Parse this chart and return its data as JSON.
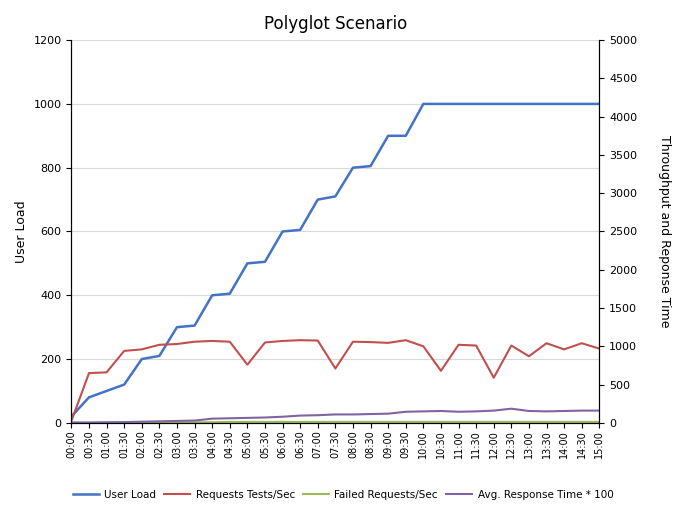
{
  "title": "Polyglot Scenario",
  "ylabel_left": "User Load",
  "ylabel_right": "Throughput and Reponse Time",
  "x_labels": [
    "00:00",
    "00:30",
    "01:00",
    "01:30",
    "02:00",
    "02:30",
    "03:00",
    "03:30",
    "04:00",
    "04:30",
    "05:00",
    "05:30",
    "06:00",
    "06:30",
    "07:00",
    "07:30",
    "08:00",
    "08:30",
    "09:00",
    "09:30",
    "10:00",
    "10:30",
    "11:00",
    "11:30",
    "12:00",
    "12:30",
    "13:00",
    "13:30",
    "14:00",
    "14:30",
    "15:00"
  ],
  "ylim_left": [
    0,
    1200
  ],
  "ylim_right": [
    0,
    5000
  ],
  "yticks_left": [
    0,
    200,
    400,
    600,
    800,
    1000,
    1200
  ],
  "yticks_right": [
    0,
    500,
    1000,
    1500,
    2000,
    2500,
    3000,
    3500,
    4000,
    4500,
    5000
  ],
  "user_load": [
    20,
    80,
    100,
    120,
    200,
    210,
    300,
    305,
    400,
    405,
    500,
    505,
    600,
    605,
    700,
    710,
    800,
    805,
    900,
    900,
    1000,
    1000,
    1000,
    1000,
    1000,
    1000,
    1000,
    1000,
    1000,
    1000,
    1000
  ],
  "requests_per_sec": [
    25,
    650,
    660,
    940,
    960,
    1020,
    1030,
    1060,
    1070,
    1060,
    760,
    1050,
    1070,
    1080,
    1075,
    710,
    1060,
    1055,
    1045,
    1080,
    1000,
    680,
    1020,
    1010,
    590,
    1010,
    870,
    1040,
    960,
    1040,
    970
  ],
  "failed_per_sec": [
    0,
    0,
    0,
    0,
    0,
    0,
    2,
    2,
    2,
    3,
    3,
    3,
    3,
    3,
    3,
    3,
    3,
    3,
    3,
    3,
    3,
    3,
    3,
    3,
    3,
    3,
    3,
    3,
    3,
    3,
    3
  ],
  "avg_response_time": [
    5,
    5,
    8,
    10,
    15,
    20,
    25,
    30,
    55,
    60,
    65,
    70,
    80,
    95,
    100,
    110,
    110,
    115,
    120,
    145,
    150,
    155,
    145,
    150,
    160,
    185,
    155,
    150,
    155,
    160,
    160
  ],
  "user_load_color": "#4472C4",
  "requests_color": "#C0504D",
  "failed_color": "#9BBB59",
  "response_color": "#8064A2",
  "legend_labels": [
    "User Load",
    "Requests Tests/Sec",
    "Failed Requests/Sec",
    "Avg. Response Time * 100"
  ],
  "background_color": "#FFFFFF",
  "grid_color": "#D9D9D9"
}
